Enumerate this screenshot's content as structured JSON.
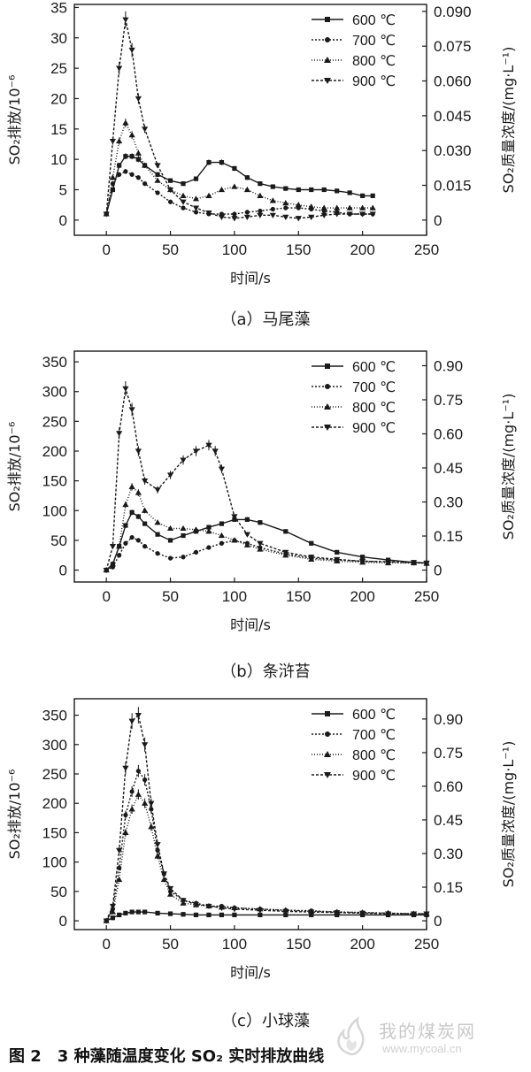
{
  "figure_title": "图 2　3 种藻随温度变化 SO₂ 实时排放曲线",
  "watermark": {
    "site_cn": "我的煤炭网",
    "url": "www.mycoal.cn"
  },
  "legend_labels": [
    "600 ℃",
    "700 ℃",
    "800 ℃",
    "900 ℃"
  ],
  "xlabel": "时间/s",
  "ylabel_left": "SO₂排放/10⁻⁶",
  "ylabel_right": "SO₂质量浓度/(mg·L⁻¹)",
  "panels": [
    {
      "caption": "（a）马尾藻"
    },
    {
      "caption": "（b）条浒苔"
    },
    {
      "caption": "（c）小球藻"
    }
  ],
  "chart_data": [
    {
      "type": "line",
      "xlim": [
        -25,
        250
      ],
      "xticks": [
        0,
        50,
        100,
        150,
        200,
        250
      ],
      "ylim": [
        -2.5,
        35.5
      ],
      "yticks": [
        0,
        5,
        10,
        15,
        20,
        25,
        30,
        35
      ],
      "y2ticks": [
        {
          "v": 0,
          "label": "0"
        },
        {
          "v": 0.015,
          "label": "0.015"
        },
        {
          "v": 0.03,
          "label": "0.030"
        },
        {
          "v": 0.045,
          "label": "0.045"
        },
        {
          "v": 0.06,
          "label": "0.060"
        },
        {
          "v": 0.075,
          "label": "0.075"
        },
        {
          "v": 0.09,
          "label": "0.090"
        }
      ],
      "y2_per_y": 0.00262,
      "series": [
        {
          "name": "600 ℃",
          "marker": "square",
          "dash": "",
          "x": [
            0,
            5,
            10,
            15,
            20,
            25,
            30,
            40,
            50,
            60,
            70,
            80,
            90,
            100,
            110,
            120,
            130,
            140,
            150,
            160,
            170,
            180,
            190,
            200,
            208
          ],
          "y": [
            1,
            5,
            9,
            10.5,
            10.5,
            10,
            9,
            7.5,
            6.5,
            6,
            6.8,
            9.5,
            9.5,
            8.5,
            7,
            6,
            5.5,
            5.2,
            5,
            5,
            5,
            4.8,
            4.5,
            4,
            4
          ]
        },
        {
          "name": "700 ℃",
          "marker": "circle",
          "dash": "2,2",
          "x": [
            0,
            5,
            10,
            15,
            20,
            25,
            30,
            40,
            50,
            60,
            70,
            80,
            90,
            100,
            110,
            120,
            130,
            140,
            150,
            160,
            170,
            180,
            190,
            200,
            208
          ],
          "y": [
            1,
            6,
            7.5,
            8,
            7.5,
            7,
            6,
            4.5,
            3,
            2,
            1.3,
            1,
            1,
            1,
            1.3,
            1.5,
            1.8,
            2,
            2,
            1.8,
            1.5,
            1.3,
            1,
            1,
            1
          ]
        },
        {
          "name": "800 ℃",
          "marker": "triangle",
          "dash": "1,2",
          "x": [
            0,
            5,
            10,
            15,
            20,
            25,
            30,
            40,
            50,
            60,
            70,
            80,
            90,
            100,
            110,
            120,
            130,
            140,
            150,
            160,
            170,
            180,
            190,
            200,
            208
          ],
          "y": [
            1,
            7,
            13,
            16,
            14,
            11,
            9,
            6.5,
            5,
            4,
            3.5,
            4,
            5,
            5.5,
            5,
            4,
            3.2,
            2.8,
            2.5,
            2.2,
            2,
            2,
            2,
            2,
            2
          ]
        },
        {
          "name": "900 ℃",
          "marker": "triangle-down",
          "dash": "3,2",
          "x": [
            0,
            5,
            10,
            15,
            20,
            25,
            30,
            40,
            50,
            60,
            70,
            80,
            90,
            100,
            110,
            120,
            130,
            140,
            150,
            160,
            170,
            180,
            190,
            200,
            208
          ],
          "y": [
            1,
            13,
            25,
            33,
            28,
            20,
            15,
            9,
            5,
            3,
            2,
            1.2,
            0.5,
            0.3,
            0.5,
            0.8,
            0.8,
            0.5,
            0.3,
            0.5,
            0.8,
            1,
            1,
            1,
            1
          ]
        }
      ]
    },
    {
      "type": "line",
      "xlim": [
        -25,
        250
      ],
      "xticks": [
        0,
        50,
        100,
        150,
        200,
        250
      ],
      "ylim": [
        -20,
        368
      ],
      "yticks": [
        0,
        50,
        100,
        150,
        200,
        250,
        300,
        350
      ],
      "y2ticks": [
        {
          "v": 0,
          "label": "0"
        },
        {
          "v": 0.15,
          "label": "0.15"
        },
        {
          "v": 0.3,
          "label": "0.30"
        },
        {
          "v": 0.45,
          "label": "0.45"
        },
        {
          "v": 0.6,
          "label": "0.60"
        },
        {
          "v": 0.75,
          "label": "0.75"
        },
        {
          "v": 0.9,
          "label": "0.90"
        }
      ],
      "y2_per_y": 0.00262,
      "series": [
        {
          "name": "600 ℃",
          "marker": "square",
          "dash": "",
          "x": [
            0,
            5,
            10,
            15,
            20,
            25,
            30,
            40,
            50,
            60,
            70,
            80,
            90,
            100,
            110,
            120,
            140,
            160,
            180,
            200,
            220,
            240,
            250
          ],
          "y": [
            0,
            10,
            40,
            75,
            97,
            90,
            78,
            60,
            50,
            58,
            65,
            72,
            78,
            85,
            85,
            80,
            65,
            45,
            30,
            22,
            17,
            13,
            12
          ]
        },
        {
          "name": "700 ℃",
          "marker": "circle",
          "dash": "2,2",
          "x": [
            0,
            5,
            10,
            15,
            20,
            25,
            30,
            40,
            50,
            60,
            70,
            80,
            90,
            100,
            110,
            120,
            140,
            160,
            180,
            200,
            220,
            240,
            250
          ],
          "y": [
            0,
            5,
            25,
            45,
            55,
            50,
            40,
            28,
            20,
            22,
            30,
            38,
            45,
            50,
            45,
            38,
            27,
            20,
            17,
            15,
            14,
            12,
            12
          ]
        },
        {
          "name": "800 ℃",
          "marker": "triangle",
          "dash": "1,2",
          "x": [
            0,
            5,
            10,
            15,
            20,
            25,
            30,
            40,
            50,
            60,
            70,
            80,
            90,
            100,
            110,
            120,
            140,
            160,
            180,
            200,
            220,
            240,
            250
          ],
          "y": [
            0,
            10,
            40,
            110,
            140,
            130,
            100,
            80,
            70,
            70,
            68,
            65,
            58,
            50,
            42,
            35,
            25,
            18,
            15,
            13,
            12,
            12,
            11
          ]
        },
        {
          "name": "900 ℃",
          "marker": "triangle-down",
          "dash": "3,2",
          "x": [
            0,
            5,
            10,
            15,
            20,
            25,
            30,
            40,
            50,
            60,
            70,
            80,
            85,
            90,
            100,
            110,
            120,
            140,
            160,
            180,
            200,
            220,
            240,
            250
          ],
          "y": [
            0,
            40,
            230,
            305,
            270,
            200,
            150,
            135,
            160,
            185,
            200,
            210,
            200,
            170,
            90,
            60,
            45,
            30,
            22,
            18,
            15,
            14,
            13,
            12
          ]
        }
      ]
    },
    {
      "type": "line",
      "xlim": [
        -25,
        250
      ],
      "xticks": [
        0,
        50,
        100,
        150,
        200,
        250
      ],
      "ylim": [
        -15,
        378
      ],
      "yticks": [
        0,
        50,
        100,
        150,
        200,
        250,
        300,
        350
      ],
      "y2ticks": [
        {
          "v": 0,
          "label": "0"
        },
        {
          "v": 0.15,
          "label": "0.15"
        },
        {
          "v": 0.3,
          "label": "0.30"
        },
        {
          "v": 0.45,
          "label": "0.45"
        },
        {
          "v": 0.6,
          "label": "0.60"
        },
        {
          "v": 0.75,
          "label": "0.75"
        },
        {
          "v": 0.9,
          "label": "0.90"
        }
      ],
      "y2_per_y": 0.00262,
      "series": [
        {
          "name": "600 ℃",
          "marker": "square",
          "dash": "",
          "x": [
            0,
            5,
            10,
            15,
            20,
            25,
            30,
            40,
            50,
            60,
            70,
            80,
            90,
            100,
            120,
            140,
            160,
            180,
            200,
            220,
            240,
            250
          ],
          "y": [
            0,
            5,
            10,
            13,
            15,
            15,
            15,
            13,
            12,
            11,
            10,
            10,
            10,
            10,
            10,
            10,
            10,
            10,
            10,
            10,
            10,
            10
          ]
        },
        {
          "name": "700 ℃",
          "marker": "circle",
          "dash": "2,2",
          "x": [
            0,
            5,
            10,
            15,
            20,
            25,
            30,
            35,
            40,
            45,
            50,
            60,
            70,
            80,
            90,
            100,
            120,
            140,
            160,
            180,
            200,
            220,
            240,
            250
          ],
          "y": [
            0,
            20,
            90,
            180,
            220,
            255,
            240,
            190,
            120,
            80,
            50,
            35,
            30,
            25,
            25,
            22,
            20,
            18,
            17,
            15,
            14,
            13,
            12,
            12
          ]
        },
        {
          "name": "800 ℃",
          "marker": "triangle",
          "dash": "1,2",
          "x": [
            0,
            5,
            10,
            15,
            20,
            25,
            30,
            35,
            40,
            45,
            50,
            60,
            70,
            80,
            90,
            100,
            120,
            140,
            160,
            180,
            200,
            220,
            240,
            250
          ],
          "y": [
            0,
            15,
            70,
            150,
            190,
            215,
            200,
            160,
            110,
            70,
            45,
            30,
            27,
            25,
            23,
            22,
            20,
            18,
            16,
            15,
            14,
            13,
            12,
            12
          ]
        },
        {
          "name": "900 ℃",
          "marker": "triangle-down",
          "dash": "3,2",
          "x": [
            0,
            5,
            10,
            15,
            20,
            25,
            30,
            35,
            40,
            45,
            50,
            60,
            70,
            80,
            90,
            100,
            120,
            140,
            160,
            180,
            200,
            220,
            240,
            250
          ],
          "y": [
            0,
            25,
            120,
            260,
            340,
            350,
            300,
            200,
            130,
            80,
            55,
            35,
            28,
            25,
            22,
            20,
            18,
            16,
            15,
            14,
            13,
            12,
            12,
            12
          ]
        }
      ]
    }
  ]
}
